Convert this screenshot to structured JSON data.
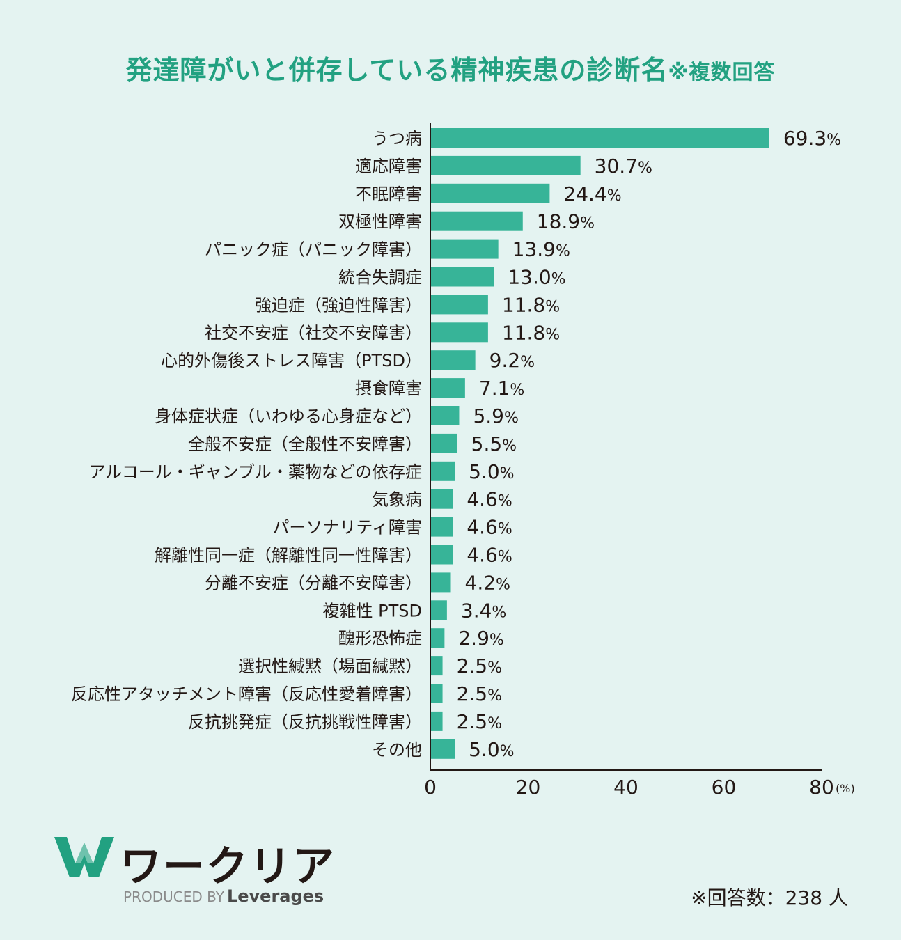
{
  "title": {
    "main": "発達障がいと併存している精神疾患の診断名",
    "note": "※複数回答"
  },
  "chart_data": {
    "type": "bar",
    "orientation": "horizontal",
    "categories": [
      "うつ病",
      "適応障害",
      "不眠障害",
      "双極性障害",
      "パニック症（パニック障害）",
      "統合失調症",
      "強迫症（強迫性障害）",
      "社交不安症（社交不安障害）",
      "心的外傷後ストレス障害（PTSD）",
      "摂食障害",
      "身体症状症（いわゆる心身症など）",
      "全般不安症（全般性不安障害）",
      "アルコール・ギャンブル・薬物などの依存症",
      "気象病",
      "パーソナリティ障害",
      "解離性同一症（解離性同一性障害）",
      "分離不安症（分離不安障害）",
      "複雑性 PTSD",
      "醜形恐怖症",
      "選択性緘黙（場面緘黙）",
      "反応性アタッチメント障害（反応性愛着障害）",
      "反抗挑発症（反抗挑戦性障害）",
      "その他"
    ],
    "values": [
      69.3,
      30.7,
      24.4,
      18.9,
      13.9,
      13.0,
      11.8,
      11.8,
      9.2,
      7.1,
      5.9,
      5.5,
      5.0,
      4.6,
      4.6,
      4.6,
      4.2,
      3.4,
      2.9,
      2.5,
      2.5,
      2.5,
      5.0
    ],
    "value_labels": [
      "69.3",
      "30.7",
      "24.4",
      "18.9",
      "13.9",
      "13.0",
      "11.8",
      "11.8",
      "9.2",
      "7.1",
      "5.9",
      "5.5",
      "5.0",
      "4.6",
      "4.6",
      "4.6",
      "4.2",
      "3.4",
      "2.9",
      "2.5",
      "2.5",
      "2.5",
      "5.0"
    ],
    "value_suffix": "%",
    "xlim": [
      0,
      80
    ],
    "x_ticks": [
      "0",
      "20",
      "40",
      "60",
      "80"
    ],
    "x_unit": "(%)",
    "bar_color": "#37b498",
    "grid": false
  },
  "brand": {
    "logo_name": "work-clear-logo",
    "name": "ワークリア",
    "produced_by": "PRODUCED BY",
    "company": "Leverages",
    "logo_color": "#22a181"
  },
  "footnote": "※回答数：238 人"
}
